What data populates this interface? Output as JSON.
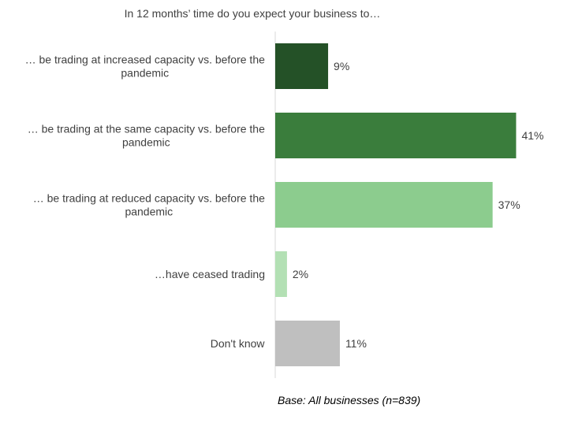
{
  "chart_data": {
    "type": "bar",
    "orientation": "horizontal",
    "title": "In 12 months’ time do you expect your business to…",
    "categories": [
      "… be trading at increased capacity vs. before the pandemic",
      "… be trading at the same capacity vs. before the pandemic",
      "… be trading at reduced capacity vs. before the pandemic",
      "…have ceased trading",
      "Don't know"
    ],
    "values": [
      9,
      41,
      37,
      2,
      11
    ],
    "value_labels": [
      "9%",
      "41%",
      "37%",
      "2%",
      "11%"
    ],
    "colors": [
      "#245127",
      "#3a7d3c",
      "#8ccc8e",
      "#b3e0b4",
      "#bfbfbf"
    ],
    "xlim": [
      0,
      50
    ],
    "unit": "%",
    "grid": false,
    "legend": "none"
  },
  "footnote": "Base: All businesses (n=839)"
}
